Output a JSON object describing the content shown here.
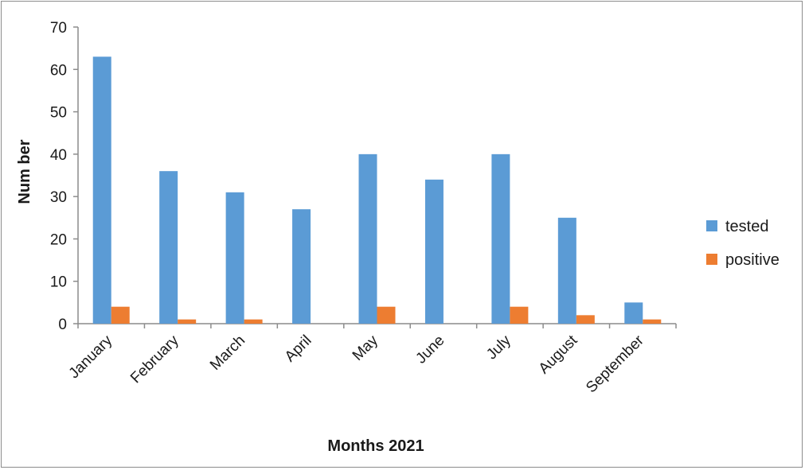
{
  "chart_data": {
    "type": "bar",
    "title": "",
    "xlabel": "Months 2021",
    "ylabel": "Num ber",
    "categories": [
      "January",
      "February",
      "March",
      "April",
      "May",
      "June",
      "July",
      "August",
      "September"
    ],
    "series": [
      {
        "name": "tested",
        "color": "#5b9bd5",
        "values": [
          63,
          36,
          31,
          27,
          40,
          34,
          40,
          25,
          5
        ]
      },
      {
        "name": "positive",
        "color": "#ed7d31",
        "values": [
          4,
          1,
          1,
          0,
          4,
          0,
          4,
          2,
          1
        ]
      }
    ],
    "ylim": [
      0,
      70
    ],
    "yticks": [
      "0",
      "10",
      "20",
      "30",
      "40",
      "50",
      "60",
      "70"
    ],
    "grid": false,
    "legend_position": "right"
  }
}
